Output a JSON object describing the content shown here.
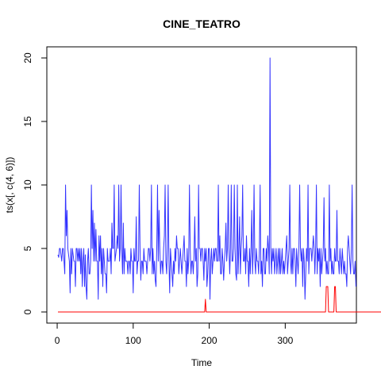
{
  "chart_data": {
    "type": "line",
    "title": "CINE_TEATRO",
    "xlabel": "Time",
    "ylabel": "ts(x[, c(4, 6)])",
    "xlim": [
      1,
      379
    ],
    "ylim": [
      0,
      20
    ],
    "x_ticks": [
      0,
      100,
      200,
      300
    ],
    "y_ticks": [
      0,
      5,
      10,
      15,
      20
    ],
    "grid": false,
    "legend": "none",
    "series": [
      {
        "color": "#3333ff",
        "values": [
          4.5,
          4.3,
          5,
          5,
          4.5,
          4,
          5,
          5,
          4,
          3,
          10,
          6,
          8,
          5,
          4.5,
          4,
          1.5,
          5,
          3,
          5,
          4.5,
          4,
          4,
          2,
          5,
          5,
          4,
          5,
          4,
          5,
          3,
          5,
          2,
          4,
          5,
          2,
          4.5,
          2,
          1,
          4,
          5,
          3,
          3,
          4,
          10,
          5,
          8,
          4,
          7,
          4,
          6.5,
          4,
          4,
          1,
          6,
          4,
          6,
          3,
          5,
          2,
          5,
          4,
          3,
          3,
          1.5,
          5,
          4,
          4,
          4,
          5,
          3,
          7,
          5,
          5,
          10,
          4,
          4.5,
          5,
          6,
          5,
          10,
          4,
          5,
          10,
          5,
          3,
          7,
          3,
          5,
          4,
          4,
          4,
          3,
          4,
          4,
          3,
          5,
          4,
          4,
          1.5,
          5,
          4,
          4,
          7.5,
          3,
          4,
          4,
          10,
          5,
          2.5,
          4,
          4,
          3,
          5,
          4,
          4,
          4,
          3,
          4,
          5,
          5,
          4,
          5,
          10,
          3,
          5,
          3,
          4,
          2.5,
          2,
          5,
          10,
          4,
          8,
          5,
          3,
          4,
          4,
          3,
          5,
          6,
          10,
          4,
          3,
          5,
          10,
          4,
          1.5,
          5,
          4,
          3,
          2,
          4,
          3,
          5,
          4,
          6,
          5,
          5,
          3,
          4,
          5,
          4,
          3,
          4,
          5,
          6,
          4,
          4,
          2,
          5,
          3,
          4,
          10,
          5,
          3,
          4,
          4,
          3,
          4.5,
          7.5,
          4,
          5,
          2,
          3,
          10,
          5,
          5,
          4,
          5,
          5,
          4,
          2.5,
          5,
          4,
          5,
          2,
          3,
          5,
          5,
          1,
          4,
          5,
          3,
          4,
          5,
          4,
          5,
          5,
          4,
          4,
          10,
          4,
          6,
          3,
          3,
          5,
          4,
          2.5,
          4,
          5,
          7,
          4,
          5,
          10,
          5,
          3,
          5,
          10,
          4,
          4,
          5,
          10,
          5,
          3,
          2.5,
          10,
          3,
          5,
          7.5,
          3,
          5,
          6,
          10,
          4,
          4,
          5,
          3,
          6,
          4,
          4,
          2,
          5,
          3,
          5,
          8,
          3,
          5,
          10,
          4,
          3,
          5,
          4,
          4,
          3,
          5,
          10,
          3,
          4,
          2,
          5,
          5,
          3,
          3,
          5,
          4,
          6,
          5,
          3,
          20,
          5,
          3,
          5,
          4,
          5,
          3,
          4,
          5,
          3,
          4,
          5,
          3,
          5,
          3,
          4,
          5,
          3,
          4,
          3,
          4,
          5,
          6,
          3,
          4,
          5,
          10,
          4,
          3,
          5,
          3,
          5,
          5,
          4,
          2,
          5,
          4,
          3,
          5,
          10,
          5,
          4,
          5,
          2,
          5,
          4,
          1,
          3,
          5,
          4,
          10,
          3,
          5,
          5,
          5,
          4,
          5,
          6,
          5,
          3,
          5,
          10,
          3,
          5,
          4,
          5,
          2,
          5,
          3,
          4,
          5,
          9,
          4,
          5,
          3,
          4,
          3,
          3,
          10,
          4,
          5,
          3,
          4,
          3,
          3,
          5,
          4,
          4,
          8,
          4,
          4,
          3,
          5,
          4,
          3,
          5,
          4,
          3,
          4,
          3,
          3,
          2,
          5,
          6,
          5,
          4,
          3,
          5,
          10,
          4,
          3,
          3,
          4,
          2
        ]
      },
      {
        "color": "#ff0000",
        "values": [
          0,
          0,
          0,
          0,
          0,
          0,
          0,
          0,
          0,
          0,
          0,
          0,
          0,
          0,
          0,
          0,
          0,
          0,
          0,
          0,
          0,
          0,
          0,
          0,
          0,
          0,
          0,
          0,
          0,
          0,
          0,
          0,
          0,
          0,
          0,
          0,
          0,
          0,
          0,
          0,
          0,
          0,
          0,
          0,
          0,
          0,
          0,
          0,
          0,
          0,
          0,
          0,
          0,
          0,
          0,
          0,
          0,
          0,
          0,
          0,
          0,
          0,
          0,
          0,
          0,
          0,
          0,
          0,
          0,
          0,
          0,
          0,
          0,
          0,
          0,
          0,
          0,
          0,
          0,
          0,
          0,
          0,
          0,
          0,
          0,
          0,
          0,
          0,
          0,
          0,
          0,
          0,
          0,
          0,
          0,
          0,
          0,
          0,
          0,
          0,
          0,
          0,
          0,
          0,
          0,
          0,
          0,
          0,
          0,
          0,
          0,
          0,
          0,
          0,
          0,
          0,
          0,
          0,
          0,
          0,
          0,
          0,
          0,
          0,
          0,
          0,
          0,
          0,
          0,
          0,
          0,
          0,
          0,
          0,
          0,
          0,
          0,
          0,
          0,
          0,
          0,
          0,
          0,
          0,
          0,
          0,
          0,
          0,
          0,
          0,
          0,
          0,
          0,
          0,
          0,
          0,
          0,
          0,
          0,
          0,
          0,
          0,
          0,
          0,
          0,
          0,
          0,
          0,
          0,
          0,
          0,
          0,
          0,
          0,
          0,
          0,
          0,
          0,
          0,
          0,
          0,
          0,
          0,
          0,
          0,
          0,
          0,
          0,
          0,
          0,
          0,
          0,
          0,
          0,
          1,
          0,
          0,
          0,
          0,
          0,
          0,
          0,
          0,
          0,
          0,
          0,
          0,
          0,
          0,
          0,
          0,
          0,
          0,
          0,
          0,
          0,
          0,
          0,
          0,
          0,
          0,
          0,
          0,
          0,
          0,
          0,
          0,
          0,
          0,
          0,
          0,
          0,
          0,
          0,
          0,
          0,
          0,
          0,
          0,
          0,
          0,
          0,
          0,
          0,
          0,
          0,
          0,
          0,
          0,
          0,
          0,
          0,
          0,
          0,
          0,
          0,
          0,
          0,
          0,
          0,
          0,
          0,
          0,
          0,
          0,
          0,
          0,
          0,
          0,
          0,
          0,
          0,
          0,
          0,
          0,
          0,
          0,
          0,
          0,
          0,
          0,
          0,
          0,
          0,
          0,
          0,
          0,
          0,
          0,
          0,
          0,
          0,
          0,
          0,
          0,
          0,
          0,
          0,
          0,
          0,
          0,
          0,
          0,
          0,
          0,
          0,
          0,
          0,
          0,
          0,
          0,
          0,
          0,
          0,
          0,
          0,
          0,
          0,
          0,
          0,
          0,
          0,
          0,
          0,
          0,
          0,
          0,
          0,
          0,
          0,
          0,
          0,
          0,
          0,
          0,
          0,
          0,
          0,
          0,
          0,
          0,
          0,
          0,
          0,
          0,
          0,
          0,
          0,
          0,
          0,
          0,
          0,
          0,
          2,
          2,
          2,
          0,
          0,
          0,
          0,
          0,
          0,
          0,
          0,
          2,
          2,
          0,
          0,
          0,
          0,
          0,
          0,
          0,
          0,
          0,
          0,
          0,
          0,
          0,
          0,
          0,
          0,
          0,
          0,
          0,
          0,
          0,
          0,
          0,
          0,
          0,
          0,
          0,
          0,
          0,
          0,
          0,
          0,
          0,
          0,
          0,
          0,
          0,
          0,
          0,
          0,
          0,
          0,
          0,
          0,
          0,
          0,
          0,
          0,
          0,
          0,
          0,
          0,
          0,
          0,
          0,
          0,
          0,
          0,
          0,
          0,
          0,
          0,
          0,
          0,
          0,
          0,
          0,
          0
        ]
      }
    ]
  }
}
